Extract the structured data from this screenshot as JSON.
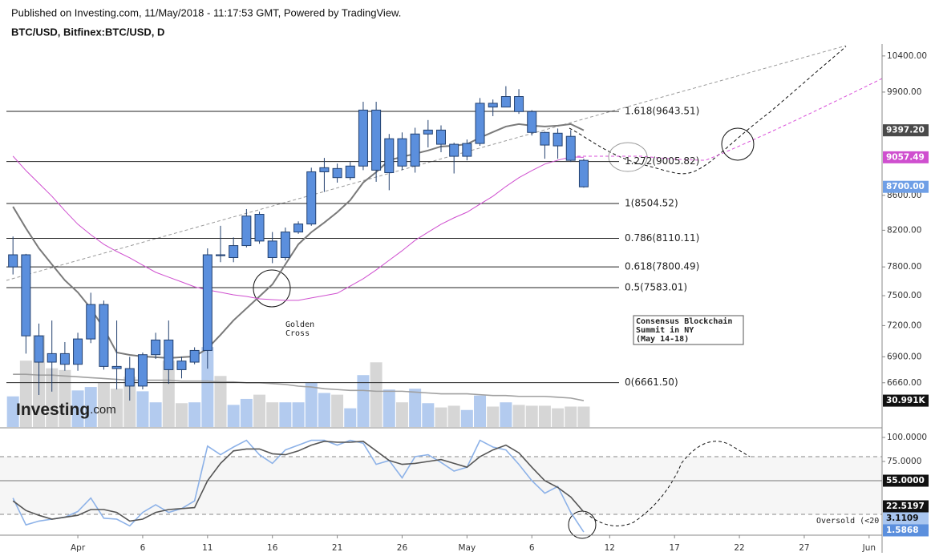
{
  "header": {
    "published": "Published on Investing.com, 11/May/2018 - 11:17:53 GMT, Powered by TradingView.",
    "symbol": "BTC/USD, Bitfinex:BTC/USD, D"
  },
  "chart_data": [
    {
      "type": "candlestick",
      "log_scale": true,
      "x": [
        "Mar 27",
        "Mar 28",
        "Mar 29",
        "Mar 30",
        "Mar 31",
        "Apr 1",
        "Apr 2",
        "Apr 3",
        "Apr 4",
        "Apr 5",
        "Apr 6",
        "Apr 7",
        "Apr 8",
        "Apr 9",
        "Apr 10",
        "Apr 11",
        "Apr 12",
        "Apr 13",
        "Apr 14",
        "Apr 15",
        "Apr 16",
        "Apr 17",
        "Apr 18",
        "Apr 19",
        "Apr 20",
        "Apr 21",
        "Apr 22",
        "Apr 23",
        "Apr 24",
        "Apr 25",
        "Apr 26",
        "Apr 27",
        "Apr 28",
        "Apr 29",
        "Apr 30",
        "May 1",
        "May 2",
        "May 3",
        "May 4",
        "May 5",
        "May 6",
        "May 7",
        "May 8",
        "May 9",
        "May 10"
      ],
      "open": [
        7800,
        7930,
        7100,
        6930,
        6930,
        6830,
        7070,
        7410,
        6810,
        6790,
        6630,
        6920,
        7060,
        6860,
        6850,
        6960,
        7930,
        7900,
        8030,
        8380,
        8080,
        7900,
        8180,
        8270,
        8880,
        8920,
        8810,
        8950,
        9660,
        8870,
        9290,
        8950,
        9350,
        9400,
        9220,
        9070,
        9230,
        9750,
        9700,
        9840,
        9640,
        9370,
        9360,
        9320,
        9020
      ],
      "high": [
        8130,
        7940,
        7220,
        7250,
        7040,
        7130,
        7530,
        7450,
        7250,
        6900,
        6940,
        7130,
        7250,
        6900,
        6990,
        8000,
        8250,
        8120,
        8440,
        8410,
        8180,
        8230,
        8300,
        8930,
        9050,
        8980,
        9000,
        9770,
        9770,
        9350,
        9370,
        9430,
        9530,
        9460,
        9240,
        9280,
        9820,
        9800,
        9980,
        9940,
        9660,
        9380,
        9420,
        9400,
        9040
      ],
      "low": [
        7720,
        6930,
        6550,
        6580,
        6770,
        6770,
        7030,
        6780,
        6600,
        6500,
        6600,
        6880,
        6650,
        6700,
        6830,
        6790,
        7850,
        7850,
        8010,
        8050,
        7840,
        7870,
        8160,
        8250,
        8640,
        8750,
        8780,
        8900,
        8760,
        8660,
        8900,
        8870,
        9180,
        9120,
        8860,
        9020,
        9200,
        9580,
        9700,
        9610,
        9330,
        9040,
        9040,
        9000,
        8690
      ],
      "close": [
        7930,
        7100,
        6850,
        6850,
        6830,
        7070,
        7410,
        6810,
        6790,
        6630,
        6920,
        7060,
        6780,
        6780,
        6960,
        7930,
        7920,
        8030,
        8360,
        8080,
        7900,
        8180,
        8270,
        8880,
        8930,
        8810,
        8950,
        9660,
        8900,
        9290,
        8950,
        9350,
        9400,
        9220,
        9070,
        9230,
        9750,
        9700,
        9840,
        9640,
        9370,
        9210,
        9200,
        9020,
        8700
      ],
      "candle_color": "#5b8fdd",
      "candle_border": "#22406f",
      "xlim": [
        "Mar 26",
        "Jun 2"
      ],
      "xticks": [
        {
          "value": "Apr 1",
          "label": "Apr"
        },
        {
          "value": "Apr 6",
          "label": "6"
        },
        {
          "value": "Apr 11",
          "label": "11"
        },
        {
          "value": "Apr 16",
          "label": "16"
        },
        {
          "value": "Apr 21",
          "label": "21"
        },
        {
          "value": "Apr 26",
          "label": "26"
        },
        {
          "value": "May 1",
          "label": "May"
        },
        {
          "value": "May 6",
          "label": "6"
        },
        {
          "value": "May 12",
          "label": "12"
        },
        {
          "value": "May 17",
          "label": "17"
        },
        {
          "value": "May 22",
          "label": "22"
        },
        {
          "value": "May 27",
          "label": "27"
        },
        {
          "value": "Jun 1",
          "label": "Jun"
        }
      ],
      "ylim": [
        6270,
        10570
      ],
      "yticks": [
        {
          "value": 10400,
          "label": "10400.00"
        },
        {
          "value": 9900,
          "label": "9900.00"
        },
        {
          "value": 8600,
          "label": "8600.00"
        },
        {
          "value": 8200,
          "label": "8200.00"
        },
        {
          "value": 7800,
          "label": "7800.00"
        },
        {
          "value": 7500,
          "label": "7500.00"
        },
        {
          "value": 7200,
          "label": "7200.00"
        },
        {
          "value": 6900,
          "label": "6900.00"
        },
        {
          "value": 6660,
          "label": "6660.00"
        }
      ],
      "overlays": [
        {
          "color": "#7a7a7a",
          "values": [
            8468,
            8222,
            8001,
            7827,
            7659,
            7534,
            7371,
            7172,
            6941,
            6918,
            6904,
            6896,
            6889,
            6896,
            6904,
            6979,
            7110,
            7251,
            7371,
            7492,
            7616,
            7827,
            8044,
            8178,
            8286,
            8404,
            8543,
            8751,
            8876,
            9022,
            9062,
            9102,
            9142,
            9192,
            9202,
            9222,
            9303,
            9375,
            9446,
            9477,
            9457,
            9446,
            9457,
            9477,
            9397.2
          ]
        },
        {
          "color": "#cf4fcf",
          "values": [
            9072,
            8895,
            8741,
            8589,
            8422,
            8267,
            8150,
            8044,
            7966,
            7897,
            7819,
            7743,
            7692,
            7642,
            7591,
            7559,
            7534,
            7509,
            7492,
            7468,
            7460,
            7452,
            7452,
            7477,
            7500,
            7525,
            7599,
            7675,
            7768,
            7871,
            7974,
            8088,
            8178,
            8267,
            8340,
            8404,
            8497,
            8589,
            8704,
            8809,
            8895,
            8974,
            9022,
            9062,
            9057.49
          ]
        }
      ],
      "fib_levels": [
        {
          "value": 9643.51,
          "label": "1.618(9643.51)"
        },
        {
          "value": 9005.82,
          "label": "1.272(9005.82)"
        },
        {
          "value": 8504.52,
          "label": "1(8504.52)"
        },
        {
          "value": 8110.11,
          "label": "0.786(8110.11)"
        },
        {
          "value": 7800.49,
          "label": "0.618(7800.49)"
        },
        {
          "value": 7583.01,
          "label": "0.5(7583.01)"
        },
        {
          "value": 6661.5,
          "label": "0(6661.50)"
        }
      ],
      "price_labels": [
        {
          "value": 9397.2,
          "label": "9397.20",
          "color": "#4a4a4a"
        },
        {
          "value": 9057.49,
          "label": "9057.49",
          "color": "#cf4fcf"
        },
        {
          "value": 8700,
          "label": "8700.00",
          "color": "#6f9fe6"
        }
      ],
      "volume": {
        "ylim": [
          0,
          450
        ],
        "up_color": "#b3cbef",
        "down_color": "#d6d6d6",
        "values": [
          36,
          78,
          108,
          69,
          67,
          43,
          47,
          52,
          45,
          59,
          42,
          29,
          78,
          28,
          29,
          94,
          60,
          26,
          33,
          38,
          29,
          29,
          29,
          52,
          40,
          38,
          22,
          61,
          76,
          44,
          29,
          45,
          28,
          23,
          25,
          20,
          37,
          24,
          29,
          26,
          25,
          25,
          22,
          24,
          24
        ],
        "ma": {
          "color": "#a0a0a0",
          "values": [
            62,
            62,
            61,
            61,
            60,
            59,
            58,
            57,
            56,
            55,
            55,
            55,
            55,
            54,
            54,
            54,
            53,
            53,
            52,
            52,
            51,
            50,
            48,
            47,
            45,
            44,
            43,
            43,
            42,
            42,
            42,
            41,
            40,
            39,
            39,
            39,
            38,
            37,
            37,
            36,
            36,
            36,
            35,
            34,
            30.991
          ]
        },
        "last_label": {
          "value": 30.991,
          "label": "30.991K",
          "color": "#111111"
        }
      },
      "annotations": {
        "golden_cross": [
          "Golden",
          "Cross"
        ],
        "event": [
          "Consensus Blockchain",
          "Summit in NY",
          "(May 14-18)"
        ]
      },
      "logo": [
        "Investing",
        ".com"
      ]
    },
    {
      "type": "line",
      "ylim": [
        0,
        110
      ],
      "yticks": [
        {
          "value": 100,
          "label": "100.0000"
        },
        {
          "value": 75,
          "label": "75.0000"
        }
      ],
      "band": [
        20,
        80
      ],
      "level": 55,
      "series": [
        {
          "color": "#8db2e8",
          "values": [
            37,
            9,
            13,
            15,
            17,
            23,
            37,
            16,
            15,
            8,
            22,
            30,
            22,
            26,
            34,
            91,
            82,
            90,
            97,
            82,
            73,
            87,
            92,
            97,
            97,
            92,
            97,
            94,
            72,
            76,
            58,
            80,
            82,
            74,
            65,
            69,
            97,
            90,
            87,
            72,
            55,
            42,
            49,
            22,
            1.5868
          ]
        },
        {
          "color": "#555555",
          "values": [
            34,
            24,
            19,
            15,
            17,
            19,
            25,
            25,
            22,
            13,
            15,
            22,
            25,
            26,
            27,
            55,
            73,
            86,
            88,
            88,
            83,
            82,
            86,
            92,
            96,
            95,
            95,
            96,
            86,
            76,
            72,
            73,
            75,
            77,
            73,
            69,
            80,
            87,
            92,
            84,
            69,
            55,
            48,
            38,
            22.5197
          ]
        }
      ],
      "value_labels": [
        {
          "value": 55,
          "label": "55.0000",
          "color": "#111111"
        },
        {
          "value": 22.5197,
          "label": "22.5197",
          "color": "#111111"
        },
        {
          "value": 3.1109,
          "label": "3.1109",
          "color": "#a9c6f0"
        },
        {
          "value": 1.5868,
          "label": "1.5868",
          "color": "#5b8fdd"
        }
      ],
      "annotation": "Oversold (<20"
    }
  ]
}
